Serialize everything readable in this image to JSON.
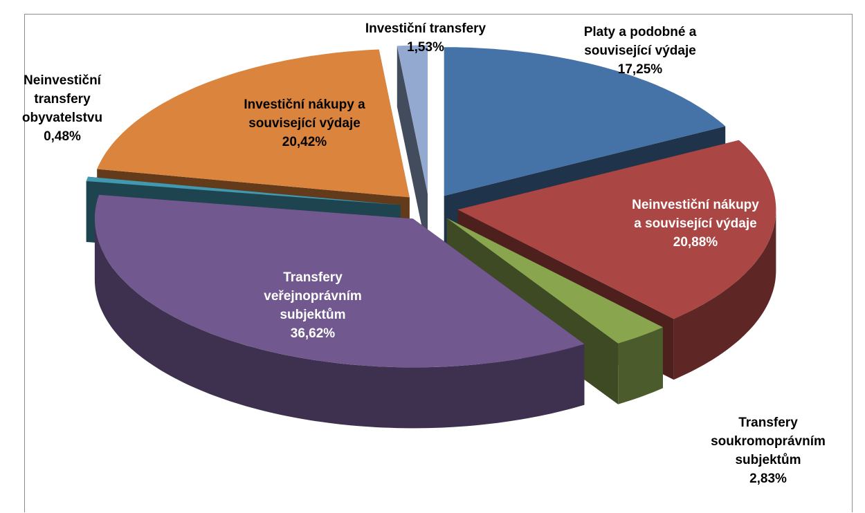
{
  "chart_data": {
    "type": "pie3d",
    "categories": [
      "Platy a podobné a související výdaje",
      "Neinvestiční nákupy a související výdaje",
      "Transfery soukromoprávním subjektům",
      "Transfery veřejnoprávním subjektům",
      "Neinvestiční transfery obyvatelstvu",
      "Investiční nákupy a související výdaje",
      "Investiční transfery"
    ],
    "values": [
      17.25,
      20.88,
      2.83,
      36.62,
      0.48,
      20.42,
      1.53
    ],
    "value_labels": [
      "17,25%",
      "20,88%",
      "2,83%",
      "36,62%",
      "0,48%",
      "20,42%",
      "1,53%"
    ],
    "colors": [
      "#4572a7",
      "#aa4643",
      "#89a54e",
      "#71588f",
      "#4198af",
      "#db843d",
      "#93a9cf"
    ]
  }
}
